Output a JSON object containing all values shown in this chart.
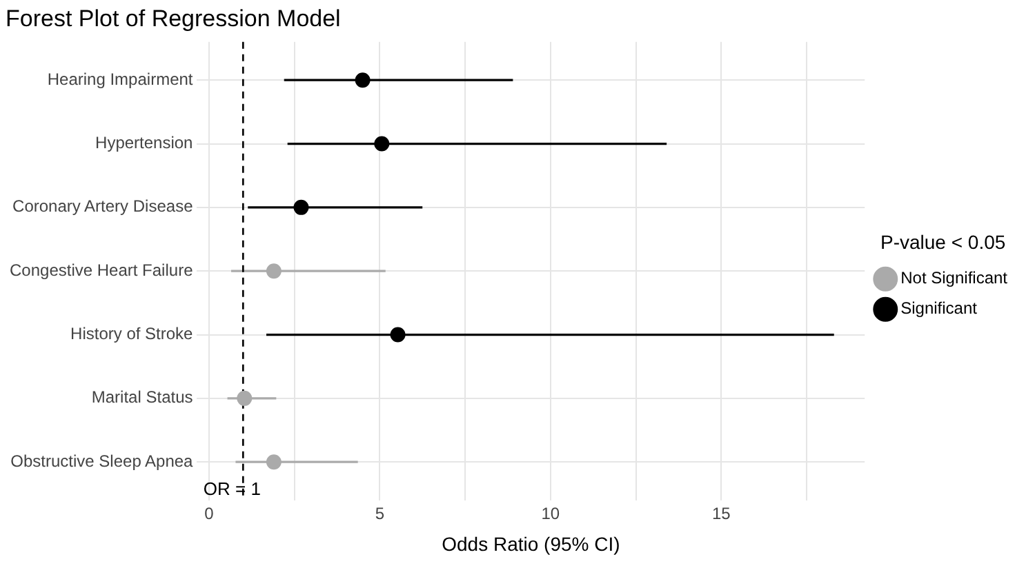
{
  "chart_data": {
    "type": "scatter",
    "orientation": "horizontal",
    "title": "Forest Plot of Regression Model",
    "xlabel": "Odds Ratio (95% CI)",
    "legend_title": "P-value < 0.05",
    "legend": "right",
    "grid": true,
    "marker": "circle",
    "categories": [
      "Hearing Impairment",
      "Hypertension",
      "Coronary Artery Disease",
      "Congestive Heart Failure",
      "History of Stroke",
      "Marital Status",
      "Obstructive Sleep Apnea"
    ],
    "xlim": [
      -0.35,
      19.2
    ],
    "xticks": [
      0,
      {
        "value": 2.5,
        "label": null
      },
      5,
      {
        "value": 7.5,
        "label": null
      },
      10,
      {
        "value": 12.5,
        "label": null
      },
      15,
      {
        "value": 17.5,
        "label": null
      }
    ],
    "series": [
      {
        "name": "Not Significant",
        "color": "#aaaaaa",
        "values": [
          null,
          null,
          null,
          1.9,
          null,
          1.04,
          1.9
        ],
        "errors": [
          null,
          null,
          null,
          [
            0.65,
            5.17
          ],
          null,
          [
            0.54,
            1.97
          ],
          [
            0.78,
            4.36
          ]
        ]
      },
      {
        "name": "Significant",
        "color": "#000000",
        "values": [
          4.5,
          5.06,
          2.7,
          null,
          5.53,
          null,
          null
        ],
        "errors": [
          [
            2.2,
            8.9
          ],
          [
            2.3,
            13.4
          ],
          [
            1.14,
            6.25
          ],
          null,
          [
            1.68,
            18.3
          ],
          null,
          null
        ]
      }
    ],
    "ref_lines": [
      {
        "axis": "x",
        "value": 1,
        "label": "OR = 1",
        "color": "#000000",
        "line_style": "dashed"
      }
    ]
  }
}
